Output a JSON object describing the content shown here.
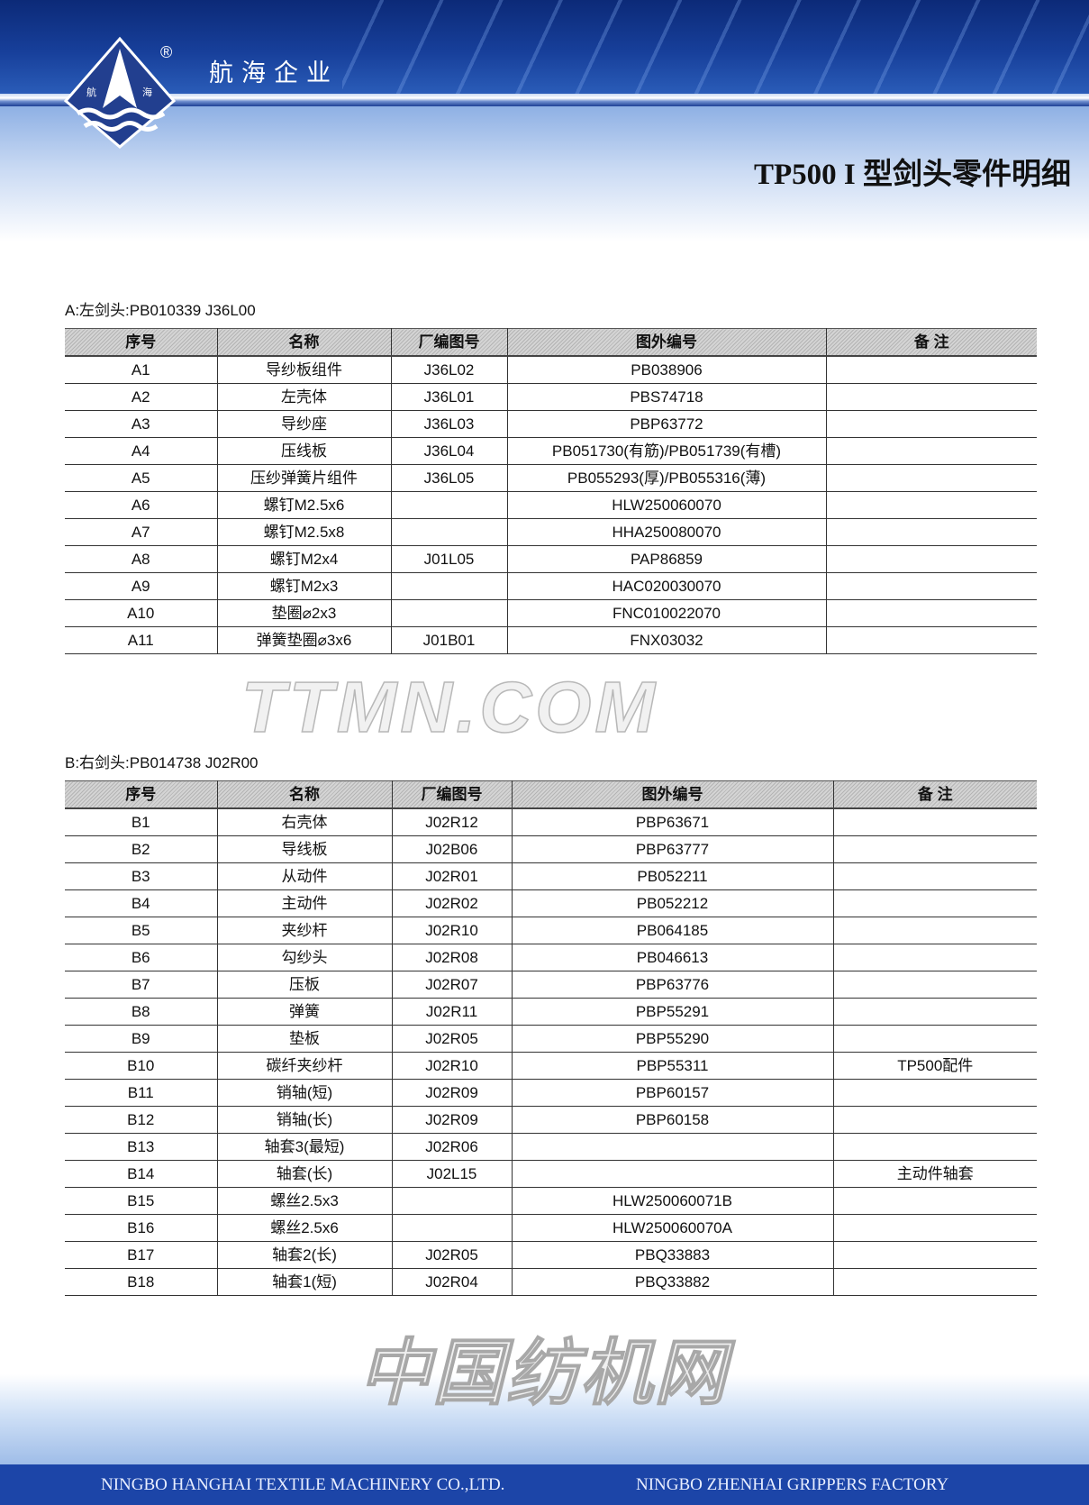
{
  "brand": {
    "company_cn": "航海企业",
    "logo_text_left": "航",
    "logo_text_right": "海",
    "registered": "®"
  },
  "title": "TP500 I 型剑头零件明细",
  "columns": [
    "序号",
    "名称",
    "厂编图号",
    "图外编号",
    "备 注"
  ],
  "section_a": {
    "label": "A:左剑头:PB010339   J36L00",
    "rows": [
      [
        "A1",
        "导纱板组件",
        "J36L02",
        "PB038906",
        ""
      ],
      [
        "A2",
        "左壳体",
        "J36L01",
        "PBS74718",
        ""
      ],
      [
        "A3",
        "导纱座",
        "J36L03",
        "PBP63772",
        ""
      ],
      [
        "A4",
        "压线板",
        "J36L04",
        "PB051730(有筋)/PB051739(有槽)",
        ""
      ],
      [
        "A5",
        "压纱弹簧片组件",
        "J36L05",
        "PB055293(厚)/PB055316(薄)",
        ""
      ],
      [
        "A6",
        "螺钉M2.5x6",
        "",
        "HLW250060070",
        ""
      ],
      [
        "A7",
        "螺钉M2.5x8",
        "",
        "HHA250080070",
        ""
      ],
      [
        "A8",
        "螺钉M2x4",
        "J01L05",
        "PAP86859",
        ""
      ],
      [
        "A9",
        "螺钉M2x3",
        "",
        "HAC020030070",
        ""
      ],
      [
        "A10",
        "垫圈⌀2x3",
        "",
        "FNC010022070",
        ""
      ],
      [
        "A11",
        "弹簧垫圈⌀3x6",
        "J01B01",
        "FNX03032",
        ""
      ]
    ]
  },
  "section_b": {
    "label": "B:右剑头:PB014738   J02R00",
    "rows": [
      [
        "B1",
        "右壳体",
        "J02R12",
        "PBP63671",
        ""
      ],
      [
        "B2",
        "导线板",
        "J02B06",
        "PBP63777",
        ""
      ],
      [
        "B3",
        "从动件",
        "J02R01",
        "PB052211",
        ""
      ],
      [
        "B4",
        "主动件",
        "J02R02",
        "PB052212",
        ""
      ],
      [
        "B5",
        "夹纱杆",
        "J02R10",
        "PB064185",
        ""
      ],
      [
        "B6",
        "勾纱头",
        "J02R08",
        "PB046613",
        ""
      ],
      [
        "B7",
        "压板",
        "J02R07",
        "PBP63776",
        ""
      ],
      [
        "B8",
        "弹簧",
        "J02R11",
        "PBP55291",
        ""
      ],
      [
        "B9",
        "垫板",
        "J02R05",
        "PBP55290",
        ""
      ],
      [
        "B10",
        "碳纤夹纱杆",
        "J02R10",
        "PBP55311",
        "TP500配件"
      ],
      [
        "B11",
        "销轴(短)",
        "J02R09",
        "PBP60157",
        ""
      ],
      [
        "B12",
        "销轴(长)",
        "J02R09",
        "PBP60158",
        ""
      ],
      [
        "B13",
        "轴套3(最短)",
        "J02R06",
        "",
        ""
      ],
      [
        "B14",
        "轴套(长)",
        "J02L15",
        "",
        "主动件轴套"
      ],
      [
        "B15",
        "螺丝2.5x3",
        "",
        "HLW250060071B",
        ""
      ],
      [
        "B16",
        "螺丝2.5x6",
        "",
        "HLW250060070A",
        ""
      ],
      [
        "B17",
        "轴套2(长)",
        "J02R05",
        "PBQ33883",
        ""
      ],
      [
        "B18",
        "轴套1(短)",
        "J02R04",
        "PBQ33882",
        ""
      ]
    ]
  },
  "watermark": {
    "latin": "TTMN.COM",
    "cn": "中国纺机网"
  },
  "footer": {
    "left": "NINGBO HANGHAI TEXTILE MACHINERY CO.,LTD.",
    "right": "NINGBO ZHENHAI GRIPPERS FACTORY"
  },
  "colors": {
    "header_blue": "#173f9a",
    "footer_blue": "#1c45a8",
    "table_header_gray": "#c4c4c4"
  }
}
